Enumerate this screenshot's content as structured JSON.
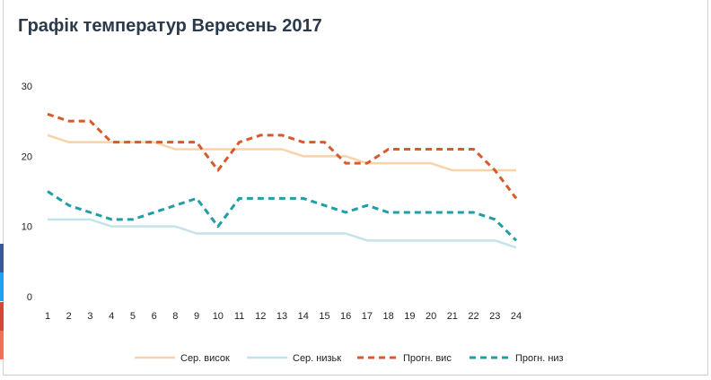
{
  "chart_data": {
    "type": "line",
    "title": "Графік температур Вересень 2017",
    "xlabel": "",
    "ylabel": "",
    "ylim": [
      0,
      30
    ],
    "yticks": [
      "0",
      "10",
      "20",
      "30"
    ],
    "categories": [
      "1",
      "2",
      "3",
      "4",
      "5",
      "6",
      "8",
      "9",
      "10",
      "11",
      "12",
      "13",
      "14",
      "15",
      "16",
      "17",
      "18",
      "19",
      "20",
      "21",
      "22",
      "23",
      "24"
    ],
    "legend_position": "bottom",
    "series": [
      {
        "name": "Сер. висок",
        "color": "#f8d3a9",
        "dashed": false,
        "values": [
          23,
          22,
          22,
          22,
          22,
          22,
          21,
          21,
          21,
          21,
          21,
          21,
          20,
          20,
          20,
          19,
          19,
          19,
          19,
          18,
          18,
          18,
          18
        ]
      },
      {
        "name": "Сер. низьк",
        "color": "#c3e3ea",
        "dashed": false,
        "values": [
          11,
          11,
          11,
          10,
          10,
          10,
          10,
          9,
          9,
          9,
          9,
          9,
          9,
          9,
          9,
          8,
          8,
          8,
          8,
          8,
          8,
          8,
          7
        ]
      },
      {
        "name": "Прогн. вис",
        "color": "#d85a2b",
        "dashed": true,
        "values": [
          26,
          25,
          25,
          22,
          22,
          22,
          22,
          22,
          18,
          22,
          23,
          23,
          22,
          22,
          19,
          19,
          21,
          21,
          21,
          21,
          21,
          18,
          14
        ]
      },
      {
        "name": "Прогн. низ",
        "color": "#1f9ea3",
        "dashed": true,
        "values": [
          15,
          13,
          12,
          11,
          11,
          12,
          13,
          14,
          10,
          14,
          14,
          14,
          14,
          13,
          12,
          13,
          12,
          12,
          12,
          12,
          12,
          11,
          8
        ]
      }
    ]
  },
  "share_colors": [
    "#3b5998",
    "#1da1f2",
    "#d34836",
    "#f26f5f"
  ]
}
